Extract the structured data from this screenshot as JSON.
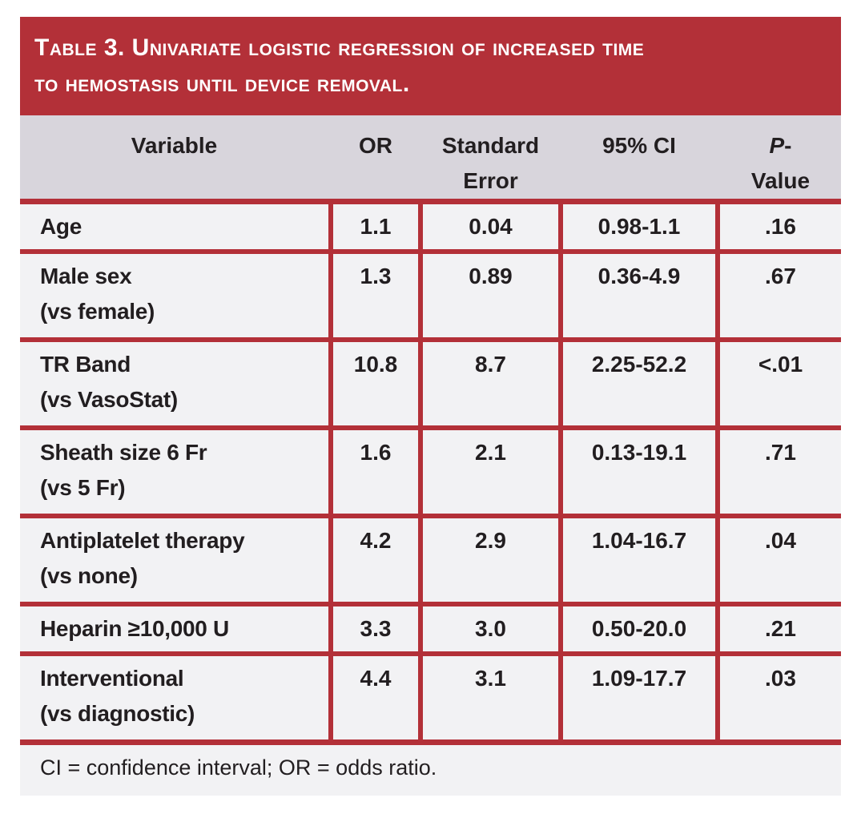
{
  "colors": {
    "accent_red": "#B33038",
    "header_bg": "#D8D5DC",
    "row_bg": "#F2F2F4",
    "title_text": "#FFFFFF",
    "body_text": "#221E20"
  },
  "table": {
    "title_lines": [
      "Table 3. Univariate logistic regression of increased time",
      "to hemostasis until device removal."
    ],
    "header": {
      "variable": "Variable",
      "or": "OR",
      "se_line1": "Standard",
      "se_line2": "Error",
      "ci": "95% CI",
      "p_italic": "P",
      "p_dash": "-",
      "p_line2": "Value"
    },
    "rows": [
      {
        "variable_line1": "Age",
        "variable_line2": "",
        "or": "1.1",
        "se": "0.04",
        "ci": "0.98-1.1",
        "p": ".16"
      },
      {
        "variable_line1": "Male sex",
        "variable_line2": "(vs female)",
        "or": "1.3",
        "se": "0.89",
        "ci": "0.36-4.9",
        "p": ".67"
      },
      {
        "variable_line1": "TR Band",
        "variable_line2": "(vs VasoStat)",
        "or": "10.8",
        "se": "8.7",
        "ci": "2.25-52.2",
        "p": "<.01"
      },
      {
        "variable_line1": "Sheath size 6 Fr",
        "variable_line2": "(vs 5 Fr)",
        "or": "1.6",
        "se": "2.1",
        "ci": "0.13-19.1",
        "p": ".71"
      },
      {
        "variable_line1": "Antiplatelet therapy",
        "variable_line2": "(vs none)",
        "or": "4.2",
        "se": "2.9",
        "ci": "1.04-16.7",
        "p": ".04"
      },
      {
        "variable_line1": "Heparin ≥10,000 U",
        "variable_line2": "",
        "or": "3.3",
        "se": "3.0",
        "ci": "0.50-20.0",
        "p": ".21"
      },
      {
        "variable_line1": "Interventional",
        "variable_line2": "(vs diagnostic)",
        "or": "4.4",
        "se": "3.1",
        "ci": "1.09-17.7",
        "p": ".03"
      }
    ],
    "footnote": "CI = confidence interval; OR = odds ratio."
  }
}
